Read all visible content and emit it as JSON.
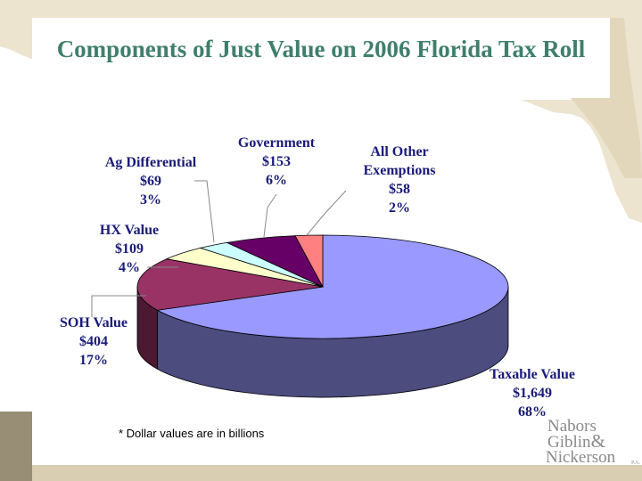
{
  "title": "Components of Just Value on 2006 Florida Tax Roll",
  "footnote": "* Dollar values are in billions",
  "logo": {
    "line1": "Nabors",
    "line2": "Giblin",
    "amp": "&",
    "line3": "Nickerson",
    "suffix": "P.A."
  },
  "colors": {
    "title": "#3f7f6c",
    "labels": "#1a1a7a",
    "background_map": "#ede4cf",
    "band": "#d9cdb2",
    "band_dark": "#988e76"
  },
  "chart_data": {
    "type": "pie",
    "variant": "3d",
    "title": "Components of Just Value on 2006 Florida Tax Roll",
    "unit": "billions of dollars",
    "slices": [
      {
        "name": "Taxable Value",
        "value_label": "$1,649",
        "percent_label": "68%",
        "value": 1649,
        "percent": 68,
        "color": "#9999ff",
        "side_color": "#4c4c7f"
      },
      {
        "name": "SOH Value",
        "value_label": "$404",
        "percent_label": "17%",
        "value": 404,
        "percent": 17,
        "color": "#993366",
        "side_color": "#4c1933"
      },
      {
        "name": "HX Value",
        "value_label": "$109",
        "percent_label": "4%",
        "value": 109,
        "percent": 4,
        "color": "#ffffcc",
        "side_color": "#7f7f66"
      },
      {
        "name": "Ag Differential",
        "value_label": "$69",
        "percent_label": "3%",
        "value": 69,
        "percent": 3,
        "color": "#ccffff",
        "side_color": "#667f7f"
      },
      {
        "name": "Government",
        "value_label": "$153",
        "percent_label": "6%",
        "value": 153,
        "percent": 6,
        "color": "#660066",
        "side_color": "#330033"
      },
      {
        "name": "All Other Exemptions",
        "name_lines": [
          "All Other",
          "Exemptions"
        ],
        "value_label": "$58",
        "percent_label": "2%",
        "value": 58,
        "percent": 2,
        "color": "#ff8080",
        "side_color": "#7f4040"
      }
    ],
    "legend": "none"
  }
}
